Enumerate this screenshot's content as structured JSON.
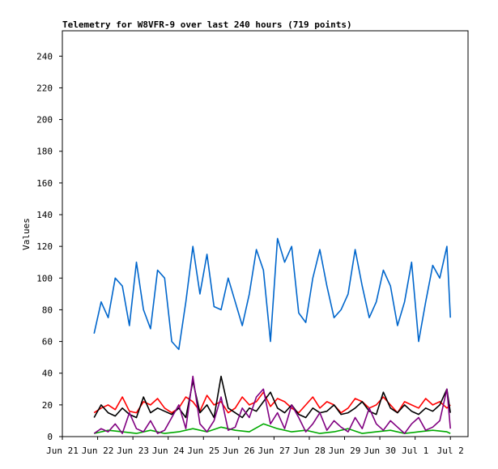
{
  "chart_data": {
    "type": "line",
    "title": "Telemetry for W8VFR-9 over last 240 hours (719 points)",
    "xlabel": "",
    "ylabel": "Values",
    "ylim": [
      0,
      256
    ],
    "yticks": [
      0,
      20,
      40,
      60,
      80,
      100,
      120,
      140,
      160,
      180,
      200,
      220,
      240
    ],
    "xticks": [
      "Jun 21",
      "Jun 22",
      "Jun 23",
      "Jun 24",
      "Jun 25",
      "Jun 26",
      "Jun 27",
      "Jun 28",
      "Jun 29",
      "Jun 30",
      "Jul 1",
      "Jul 2"
    ],
    "x_days": [
      0,
      1,
      2,
      3,
      4,
      5,
      6,
      7,
      8,
      9,
      10,
      11
    ],
    "x_domain": [
      0,
      11.5
    ],
    "grid": false,
    "series": [
      {
        "color": "#0066cc",
        "x": [
          0.9,
          1.1,
          1.3,
          1.5,
          1.7,
          1.9,
          2.1,
          2.3,
          2.5,
          2.7,
          2.9,
          3.1,
          3.3,
          3.5,
          3.7,
          3.9,
          4.1,
          4.3,
          4.5,
          4.7,
          4.9,
          5.1,
          5.3,
          5.5,
          5.7,
          5.9,
          6.1,
          6.3,
          6.5,
          6.7,
          6.9,
          7.1,
          7.3,
          7.5,
          7.7,
          7.9,
          8.1,
          8.3,
          8.5,
          8.7,
          8.9,
          9.1,
          9.3,
          9.5,
          9.7,
          9.9,
          10.1,
          10.3,
          10.5,
          10.7,
          10.9,
          11.0
        ],
        "values": [
          65,
          85,
          75,
          100,
          95,
          70,
          110,
          80,
          68,
          105,
          100,
          60,
          55,
          85,
          120,
          90,
          115,
          82,
          80,
          100,
          85,
          70,
          90,
          118,
          105,
          60,
          125,
          110,
          120,
          78,
          72,
          100,
          118,
          95,
          75,
          80,
          90,
          118,
          95,
          75,
          85,
          105,
          95,
          70,
          85,
          110,
          60,
          85,
          108,
          100,
          120,
          75
        ]
      },
      {
        "color": "#ff0000",
        "x": [
          0.9,
          1.1,
          1.3,
          1.5,
          1.7,
          1.9,
          2.1,
          2.3,
          2.5,
          2.7,
          2.9,
          3.1,
          3.3,
          3.5,
          3.7,
          3.9,
          4.1,
          4.3,
          4.5,
          4.7,
          4.9,
          5.1,
          5.3,
          5.5,
          5.7,
          5.9,
          6.1,
          6.3,
          6.5,
          6.7,
          6.9,
          7.1,
          7.3,
          7.5,
          7.7,
          7.9,
          8.1,
          8.3,
          8.5,
          8.7,
          8.9,
          9.1,
          9.3,
          9.5,
          9.7,
          9.9,
          10.1,
          10.3,
          10.5,
          10.7,
          10.9,
          11.0
        ],
        "values": [
          15,
          18,
          20,
          17,
          25,
          16,
          15,
          22,
          20,
          24,
          18,
          15,
          18,
          25,
          22,
          16,
          26,
          20,
          22,
          15,
          18,
          25,
          20,
          22,
          28,
          19,
          24,
          22,
          18,
          15,
          20,
          25,
          18,
          22,
          20,
          15,
          18,
          24,
          22,
          18,
          20,
          25,
          20,
          15,
          22,
          20,
          18,
          24,
          20,
          22,
          18,
          20
        ]
      },
      {
        "color": "#000000",
        "x": [
          0.9,
          1.1,
          1.3,
          1.5,
          1.7,
          1.9,
          2.1,
          2.3,
          2.5,
          2.7,
          2.9,
          3.1,
          3.3,
          3.5,
          3.7,
          3.9,
          4.1,
          4.3,
          4.5,
          4.7,
          4.9,
          5.1,
          5.3,
          5.5,
          5.7,
          5.9,
          6.1,
          6.3,
          6.5,
          6.7,
          6.9,
          7.1,
          7.3,
          7.5,
          7.7,
          7.9,
          8.1,
          8.3,
          8.5,
          8.7,
          8.9,
          9.1,
          9.3,
          9.5,
          9.7,
          9.9,
          10.1,
          10.3,
          10.5,
          10.7,
          10.9,
          11.0
        ],
        "values": [
          12,
          20,
          15,
          13,
          18,
          14,
          12,
          25,
          15,
          18,
          16,
          14,
          18,
          12,
          35,
          15,
          20,
          12,
          38,
          18,
          15,
          12,
          18,
          16,
          22,
          28,
          18,
          15,
          20,
          14,
          12,
          18,
          15,
          16,
          20,
          14,
          15,
          18,
          22,
          16,
          14,
          28,
          18,
          15,
          20,
          16,
          14,
          18,
          16,
          20,
          30,
          15
        ]
      },
      {
        "color": "#00aa00",
        "x": [
          0.9,
          1.3,
          1.7,
          2.1,
          2.5,
          2.9,
          3.3,
          3.7,
          4.1,
          4.5,
          4.9,
          5.3,
          5.7,
          6.1,
          6.5,
          6.9,
          7.3,
          7.7,
          8.1,
          8.5,
          8.9,
          9.3,
          9.7,
          10.1,
          10.5,
          10.9,
          11.0
        ],
        "values": [
          2,
          4,
          3,
          2,
          4,
          2,
          3,
          5,
          3,
          6,
          4,
          3,
          8,
          5,
          3,
          4,
          2,
          3,
          5,
          2,
          3,
          4,
          2,
          3,
          4,
          3,
          2
        ]
      },
      {
        "color": "#800080",
        "x": [
          0.9,
          1.1,
          1.3,
          1.5,
          1.7,
          1.9,
          2.1,
          2.3,
          2.5,
          2.7,
          2.9,
          3.1,
          3.3,
          3.5,
          3.7,
          3.9,
          4.1,
          4.3,
          4.5,
          4.7,
          4.9,
          5.1,
          5.3,
          5.5,
          5.7,
          5.9,
          6.1,
          6.3,
          6.5,
          6.7,
          6.9,
          7.1,
          7.3,
          7.5,
          7.7,
          7.9,
          8.1,
          8.3,
          8.5,
          8.7,
          8.9,
          9.1,
          9.3,
          9.5,
          9.7,
          9.9,
          10.1,
          10.3,
          10.5,
          10.7,
          10.9,
          11.0
        ],
        "values": [
          2,
          5,
          3,
          8,
          2,
          15,
          5,
          3,
          10,
          2,
          4,
          12,
          20,
          5,
          38,
          8,
          3,
          10,
          25,
          4,
          6,
          18,
          12,
          25,
          30,
          8,
          15,
          5,
          20,
          12,
          3,
          8,
          15,
          4,
          10,
          6,
          3,
          12,
          5,
          18,
          8,
          4,
          10,
          6,
          2,
          8,
          12,
          4,
          6,
          10,
          30,
          5
        ]
      }
    ]
  }
}
